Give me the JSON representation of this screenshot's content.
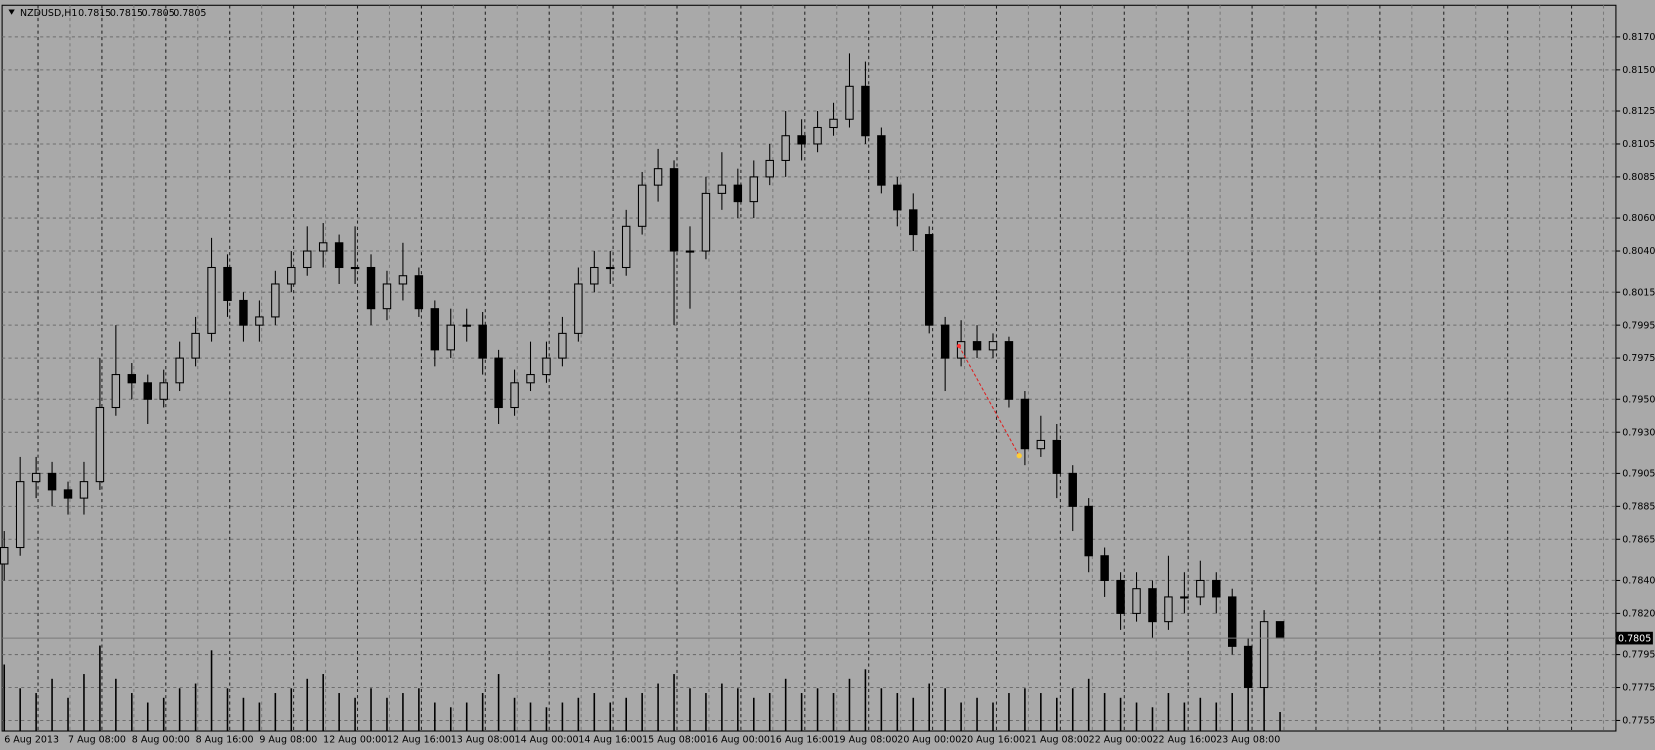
{
  "header": {
    "symbol": "NZDUSD,H1"
  },
  "chart_data": {
    "type": "candlestick",
    "categories": [
      "6 Aug 2013",
      null,
      null,
      null,
      "7 Aug 08:00",
      null,
      null,
      null,
      "8 Aug 00:00",
      null,
      null,
      null,
      "8 Aug 16:00",
      null,
      null,
      null,
      "9 Aug 08:00",
      null,
      null,
      null,
      "12 Aug 00:00",
      null,
      null,
      null,
      "12 Aug 16:00",
      null,
      null,
      null,
      "13 Aug 08:00",
      null,
      null,
      null,
      "14 Aug 00:00",
      null,
      null,
      null,
      "14 Aug 16:00",
      null,
      null,
      null,
      "15 Aug 08:00",
      null,
      null,
      null,
      "16 Aug 00:00",
      null,
      null,
      null,
      "16 Aug 16:00",
      null,
      null,
      null,
      "19 Aug 08:00",
      null,
      null,
      null,
      "20 Aug 00:00",
      null,
      null,
      null,
      "20 Aug 16:00",
      null,
      null,
      null,
      "21 Aug 08:00",
      null,
      null,
      null,
      "22 Aug 00:00",
      null,
      null,
      null,
      "22 Aug 16:00",
      null,
      null,
      null,
      "23 Aug 08:00",
      null,
      null,
      null,
      null
    ],
    "open": [
      0.785,
      0.786,
      0.79,
      0.7905,
      0.7895,
      0.789,
      0.79,
      0.7945,
      0.7965,
      0.796,
      0.795,
      0.796,
      0.7975,
      0.799,
      0.803,
      0.801,
      0.7995,
      0.8,
      0.802,
      0.803,
      0.804,
      0.8045,
      0.803,
      0.803,
      0.8005,
      0.802,
      0.8025,
      0.8005,
      0.798,
      0.7995,
      0.7995,
      0.7975,
      0.7945,
      0.796,
      0.7965,
      0.7975,
      0.799,
      0.802,
      0.803,
      0.803,
      0.8055,
      0.808,
      0.809,
      0.804,
      0.804,
      0.8075,
      0.808,
      0.807,
      0.8085,
      0.8095,
      0.811,
      0.8105,
      0.8115,
      0.812,
      0.814,
      0.811,
      0.808,
      0.8065,
      0.805,
      0.7995,
      0.7975,
      0.7985,
      0.798,
      0.7985,
      0.795,
      0.792,
      0.7925,
      0.7905,
      0.7885,
      0.7855,
      0.784,
      0.782,
      0.7835,
      0.7815,
      0.783,
      0.783,
      0.784,
      0.783,
      0.78,
      0.7775,
      0.7815
    ],
    "high": [
      0.787,
      0.7915,
      0.7915,
      0.7912,
      0.79,
      0.7912,
      0.7975,
      0.7995,
      0.7972,
      0.7965,
      0.7968,
      0.7985,
      0.8,
      0.8048,
      0.8038,
      0.8015,
      0.801,
      0.8028,
      0.804,
      0.8055,
      0.8057,
      0.805,
      0.8055,
      0.8038,
      0.8028,
      0.8045,
      0.803,
      0.801,
      0.8005,
      0.8005,
      0.8003,
      0.798,
      0.7968,
      0.7985,
      0.7985,
      0.8,
      0.803,
      0.804,
      0.804,
      0.8065,
      0.8088,
      0.8102,
      0.8095,
      0.8055,
      0.8085,
      0.81,
      0.809,
      0.8095,
      0.8105,
      0.8125,
      0.812,
      0.8125,
      0.813,
      0.816,
      0.8155,
      0.8115,
      0.8085,
      0.8075,
      0.8055,
      0.8,
      0.7998,
      0.7995,
      0.799,
      0.7988,
      0.7955,
      0.794,
      0.7935,
      0.791,
      0.789,
      0.786,
      0.7845,
      0.7845,
      0.784,
      0.7855,
      0.7845,
      0.7852,
      0.7845,
      0.7835,
      0.7805,
      0.7822,
      0.7815
    ],
    "low": [
      0.784,
      0.7855,
      0.789,
      0.7885,
      0.788,
      0.788,
      0.7895,
      0.794,
      0.795,
      0.7935,
      0.7945,
      0.7955,
      0.797,
      0.7985,
      0.8,
      0.7985,
      0.7985,
      0.7995,
      0.8015,
      0.8025,
      0.803,
      0.802,
      0.802,
      0.7995,
      0.7998,
      0.801,
      0.8,
      0.797,
      0.7975,
      0.7985,
      0.7965,
      0.7935,
      0.794,
      0.7955,
      0.796,
      0.797,
      0.7985,
      0.8015,
      0.802,
      0.8025,
      0.805,
      0.807,
      0.7995,
      0.8005,
      0.8035,
      0.8065,
      0.806,
      0.806,
      0.808,
      0.8085,
      0.8095,
      0.81,
      0.811,
      0.8115,
      0.8105,
      0.8075,
      0.8055,
      0.804,
      0.799,
      0.7955,
      0.797,
      0.7975,
      0.7975,
      0.7945,
      0.791,
      0.7915,
      0.789,
      0.787,
      0.7845,
      0.783,
      0.781,
      0.7815,
      0.7805,
      0.781,
      0.782,
      0.7825,
      0.782,
      0.7795,
      0.7765,
      0.777,
      0.7805
    ],
    "close": [
      0.786,
      0.79,
      0.7905,
      0.7895,
      0.789,
      0.79,
      0.7945,
      0.7965,
      0.796,
      0.795,
      0.796,
      0.7975,
      0.799,
      0.803,
      0.801,
      0.7995,
      0.8,
      0.802,
      0.803,
      0.804,
      0.8045,
      0.803,
      0.803,
      0.8005,
      0.802,
      0.8025,
      0.8005,
      0.798,
      0.7995,
      0.7995,
      0.7975,
      0.7945,
      0.796,
      0.7965,
      0.7975,
      0.799,
      0.802,
      0.803,
      0.803,
      0.8055,
      0.808,
      0.809,
      0.804,
      0.804,
      0.8075,
      0.808,
      0.807,
      0.8085,
      0.8095,
      0.811,
      0.8105,
      0.8115,
      0.812,
      0.814,
      0.811,
      0.808,
      0.8065,
      0.805,
      0.7995,
      0.7975,
      0.7985,
      0.798,
      0.7985,
      0.795,
      0.792,
      0.7925,
      0.7905,
      0.7885,
      0.7855,
      0.784,
      0.782,
      0.7835,
      0.7815,
      0.783,
      0.783,
      0.784,
      0.783,
      0.78,
      0.7775,
      0.7815,
      0.7805
    ],
    "volume": [
      70,
      45,
      40,
      55,
      35,
      60,
      90,
      55,
      40,
      30,
      35,
      45,
      50,
      85,
      45,
      35,
      30,
      40,
      45,
      55,
      60,
      40,
      35,
      45,
      35,
      40,
      45,
      30,
      25,
      30,
      40,
      60,
      35,
      30,
      25,
      30,
      35,
      40,
      30,
      35,
      40,
      50,
      60,
      45,
      40,
      50,
      45,
      35,
      40,
      55,
      40,
      45,
      40,
      55,
      65,
      45,
      40,
      35,
      50,
      45,
      30,
      35,
      30,
      40,
      45,
      40,
      35,
      45,
      55,
      40,
      35,
      30,
      25,
      40,
      30,
      35,
      30,
      40,
      50,
      45,
      20
    ],
    "ylim": [
      0.77486,
      0.81892
    ],
    "yticks": [
      {
        "value": 0.817,
        "label": "0.8170"
      },
      {
        "value": 0.815,
        "label": "0.8150"
      },
      0.8125,
      0.8105,
      0.8085,
      {
        "value": 0.806,
        "label": "0.8060"
      },
      {
        "value": 0.804,
        "label": "0.8040"
      },
      0.8015,
      0.7995,
      0.7975,
      {
        "value": 0.795,
        "label": "0.7950"
      },
      {
        "value": 0.793,
        "label": "0.7930"
      },
      0.7905,
      0.7885,
      0.7865,
      {
        "value": 0.784,
        "label": "0.7840"
      },
      {
        "value": 0.782,
        "label": "0.7820"
      },
      0.7795,
      0.7775,
      0.7755
    ],
    "y2lim": [
      0,
      100
    ],
    "grid": true,
    "candle_color": "#000000",
    "background": "#a9a9a9"
  }
}
